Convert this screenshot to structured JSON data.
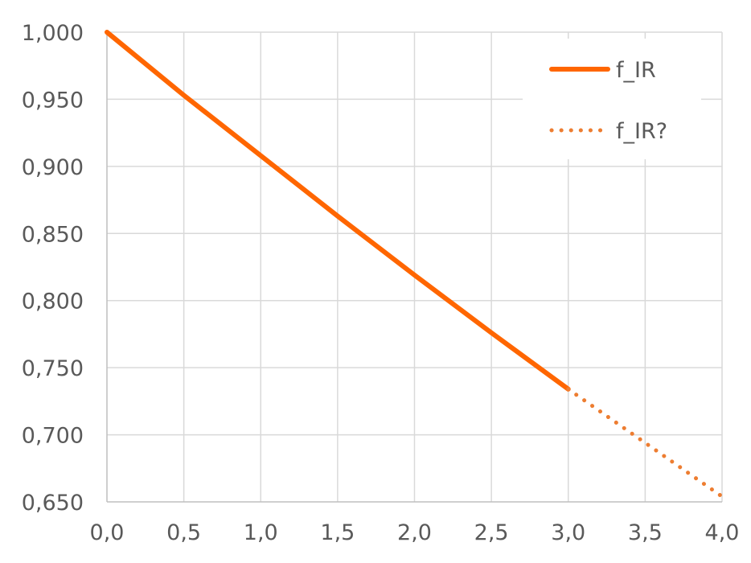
{
  "chart_data": {
    "type": "line",
    "title": "",
    "xlabel": "",
    "ylabel": "",
    "xlim": [
      0,
      4
    ],
    "ylim": [
      0.65,
      1.0
    ],
    "x_ticks": [
      0,
      0.5,
      1,
      1.5,
      2,
      2.5,
      3,
      3.5,
      4
    ],
    "x_tick_labels": [
      "0,0",
      "0,5",
      "1,0",
      "1,5",
      "2,0",
      "2,5",
      "3,0",
      "3,5",
      "4,0"
    ],
    "y_ticks": [
      0.65,
      0.7,
      0.75,
      0.8,
      0.85,
      0.9,
      0.95,
      1.0
    ],
    "y_tick_labels": [
      "0,650",
      "0,700",
      "0,750",
      "0,800",
      "0,850",
      "0,900",
      "0,950",
      "1,000"
    ],
    "grid": true,
    "legend_position": "top-right",
    "series": [
      {
        "name": "f_IR",
        "style": "solid",
        "color": "#ff6600",
        "x": [
          0,
          0.5,
          1,
          1.5,
          2,
          2.5,
          3
        ],
        "y": [
          1.0,
          0.953,
          0.908,
          0.863,
          0.819,
          0.776,
          0.734
        ]
      },
      {
        "name": "f_IR?",
        "style": "dotted",
        "color": "#ed7d31",
        "x": [
          3,
          3.5,
          4
        ],
        "y": [
          0.734,
          0.694,
          0.654
        ]
      }
    ]
  }
}
